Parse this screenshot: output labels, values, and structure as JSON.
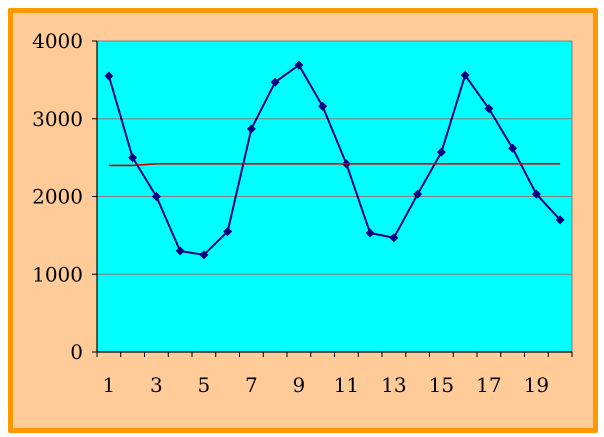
{
  "chart_data": {
    "type": "line",
    "x": [
      1,
      2,
      3,
      4,
      5,
      6,
      7,
      8,
      9,
      10,
      11,
      12,
      13,
      14,
      15,
      16,
      17,
      18,
      19,
      20
    ],
    "x_tick_labels": [
      "1",
      "3",
      "5",
      "7",
      "9",
      "11",
      "13",
      "15",
      "17",
      "19"
    ],
    "x_tick_values": [
      1,
      3,
      5,
      7,
      9,
      11,
      13,
      15,
      17,
      19
    ],
    "y_tick_labels": [
      "0",
      "1000",
      "2000",
      "3000",
      "4000"
    ],
    "y_tick_values": [
      0,
      1000,
      2000,
      3000,
      4000
    ],
    "ylim": [
      0,
      4000
    ],
    "xlim": [
      0.5,
      20.5
    ],
    "grid": "horizontal",
    "series": [
      {
        "values": [
          3550,
          2500,
          2000,
          1300,
          1250,
          1550,
          2870,
          3470,
          3690,
          3160,
          2420,
          1530,
          1470,
          2030,
          2570,
          3560,
          3130,
          2620,
          2030,
          1700
        ],
        "color": "#000080",
        "marker": "diamond"
      },
      {
        "values": [
          2400,
          2400,
          2420,
          2420,
          2420,
          2420,
          2420,
          2420,
          2420,
          2420,
          2420,
          2420,
          2420,
          2420,
          2420,
          2420,
          2420,
          2420,
          2420,
          2420
        ],
        "color": "#cc0000",
        "marker": "none"
      }
    ],
    "colors": {
      "plot_background": "#00ffff",
      "outer_background": "#ffcc99",
      "border": "#ff9900",
      "gridline": "#808080"
    }
  }
}
